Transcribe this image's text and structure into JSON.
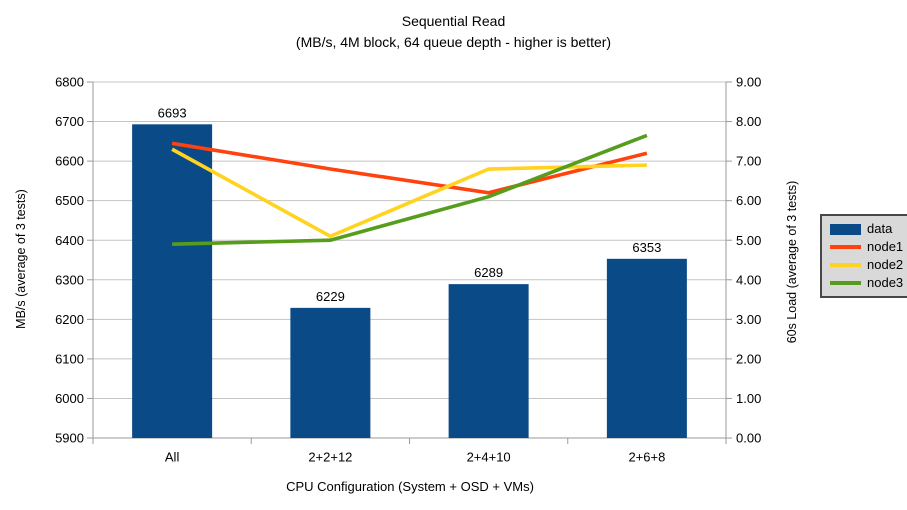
{
  "colors": {
    "background": "#ffffff",
    "data": "#0a4a87",
    "node1": "#ff420e",
    "node2": "#ffd320",
    "node3": "#579d1c",
    "grid": "#c4c4c4",
    "axis": "#9a9a9a",
    "text": "#000000",
    "legend_bg": "#d9d9d9",
    "legend_border": "#474747"
  },
  "chart_data": {
    "type": "bar+line",
    "title": "Sequential Read",
    "subtitle": "(MB/s, 4M block, 64 queue depth - higher is better)",
    "xlabel": "CPU Configuration (System + OSD + VMs)",
    "ylabel_left": "MB/s (average of 3 tests)",
    "ylabel_right": "60s Load (average of 3 tests)",
    "categories": [
      "All",
      "2+2+12",
      "2+4+10",
      "2+6+8"
    ],
    "bar_series": {
      "name": "data",
      "axis": "left",
      "values": [
        6693,
        6229,
        6289,
        6353
      ],
      "value_labels": [
        "6693",
        "6229",
        "6289",
        "6353"
      ]
    },
    "line_series": [
      {
        "name": "node1",
        "axis": "right",
        "values": [
          7.45,
          6.8,
          6.2,
          7.2
        ]
      },
      {
        "name": "node2",
        "axis": "right",
        "values": [
          7.3,
          5.1,
          6.8,
          6.9
        ]
      },
      {
        "name": "node3",
        "axis": "right",
        "values": [
          4.9,
          5.0,
          6.1,
          7.65
        ]
      }
    ],
    "left_axis": {
      "min": 5900,
      "max": 6800,
      "step": 100,
      "tick_labels": [
        "6800",
        "6700",
        "6600",
        "6500",
        "6400",
        "6300",
        "6200",
        "6100",
        "6000",
        "5900"
      ]
    },
    "right_axis": {
      "min": 0.0,
      "max": 9.0,
      "step": 1.0,
      "tick_labels": [
        "9.00",
        "8.00",
        "7.00",
        "6.00",
        "5.00",
        "4.00",
        "3.00",
        "2.00",
        "1.00",
        "0.00"
      ]
    },
    "grid": "horizontal",
    "legend": {
      "position": "right",
      "items": [
        {
          "label": "data",
          "swatch": "rect"
        },
        {
          "label": "node1",
          "swatch": "line"
        },
        {
          "label": "node2",
          "swatch": "line"
        },
        {
          "label": "node3",
          "swatch": "line"
        }
      ]
    }
  }
}
